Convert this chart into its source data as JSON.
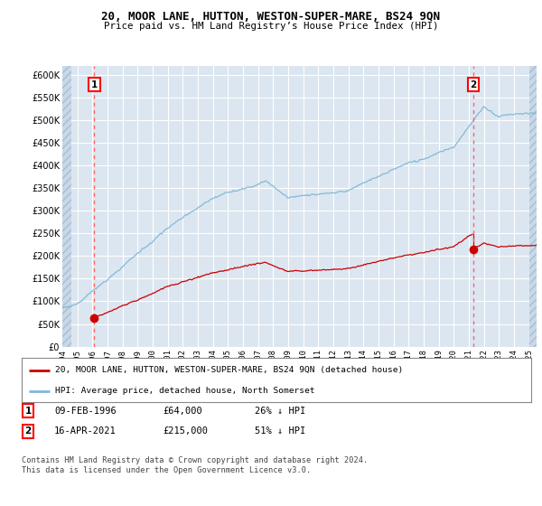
{
  "title": "20, MOOR LANE, HUTTON, WESTON-SUPER-MARE, BS24 9QN",
  "subtitle": "Price paid vs. HM Land Registry’s House Price Index (HPI)",
  "bg_color": "#dce6f1",
  "grid_color": "#ffffff",
  "hpi_color": "#7eb8d4",
  "price_color": "#cc0000",
  "marker_color": "#cc0000",
  "dashed_line_color": "#ff6666",
  "sale1_year": 1996.12,
  "sale1_price": 64000,
  "sale2_year": 2021.29,
  "sale2_price": 215000,
  "legend_entry1": "20, MOOR LANE, HUTTON, WESTON-SUPER-MARE, BS24 9QN (detached house)",
  "legend_entry2": "HPI: Average price, detached house, North Somerset",
  "footer": "Contains HM Land Registry data © Crown copyright and database right 2024.\nThis data is licensed under the Open Government Licence v3.0.",
  "ylim": [
    0,
    620000
  ],
  "yticks": [
    0,
    50000,
    100000,
    150000,
    200000,
    250000,
    300000,
    350000,
    400000,
    450000,
    500000,
    550000,
    600000
  ],
  "xmin": 1994.0,
  "xmax": 2025.5
}
